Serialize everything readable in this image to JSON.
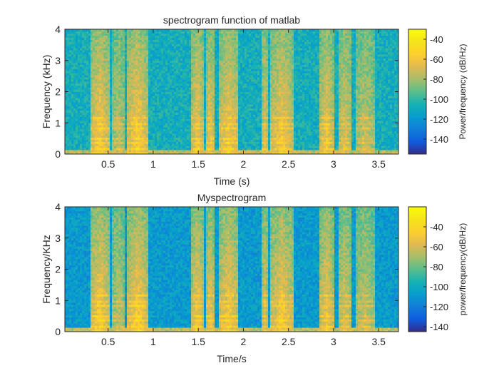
{
  "chart_data": [
    {
      "type": "heatmap",
      "title": "spectrogram function of matlab",
      "xlabel": "Time (s)",
      "ylabel": "Frequency (kHz)",
      "xlim": [
        0.02,
        3.72
      ],
      "ylim": [
        0,
        4
      ],
      "xticks": [
        0.5,
        1,
        1.5,
        2,
        2.5,
        3,
        3.5
      ],
      "xtick_labels": [
        "0.5",
        "1",
        "1.5",
        "2",
        "2.5",
        "3",
        "3.5"
      ],
      "yticks": [
        0,
        1,
        2,
        3,
        4
      ],
      "ytick_labels": [
        "0",
        "1",
        "2",
        "3",
        "4"
      ],
      "colorbar": {
        "label": "Power/frequency (dB/Hz)",
        "range": [
          -155,
          -30
        ],
        "ticks": [
          -40,
          -60,
          -80,
          -100,
          -120,
          -140
        ],
        "tick_labels": [
          "-40",
          "-60",
          "-80",
          "-100",
          "-120",
          "-140"
        ]
      },
      "colormap": "parula",
      "speech_segments": [
        {
          "t_start": 0.3,
          "t_end": 0.52,
          "level": 0.95
        },
        {
          "t_start": 0.55,
          "t_end": 0.68,
          "level": 0.55
        },
        {
          "t_start": 0.7,
          "t_end": 0.95,
          "level": 0.95
        },
        {
          "t_start": 1.43,
          "t_end": 1.55,
          "level": 0.9
        },
        {
          "t_start": 1.58,
          "t_end": 1.68,
          "level": 0.8
        },
        {
          "t_start": 1.72,
          "t_end": 1.95,
          "level": 0.9
        },
        {
          "t_start": 2.2,
          "t_end": 2.28,
          "level": 0.7
        },
        {
          "t_start": 2.3,
          "t_end": 2.55,
          "level": 0.9
        },
        {
          "t_start": 2.85,
          "t_end": 3.0,
          "level": 0.85
        },
        {
          "t_start": 3.05,
          "t_end": 3.2,
          "level": 0.7
        },
        {
          "t_start": 3.25,
          "t_end": 3.45,
          "level": 0.6
        }
      ]
    },
    {
      "type": "heatmap",
      "title": "Myspectrogram",
      "xlabel": "Time/s",
      "ylabel": "Frequency/KHz",
      "xlim": [
        0.02,
        3.72
      ],
      "ylim": [
        0,
        4
      ],
      "xticks": [
        0.5,
        1,
        1.5,
        2,
        2.5,
        3,
        3.5
      ],
      "xtick_labels": [
        "0.5",
        "1",
        "1.5",
        "2",
        "2.5",
        "3",
        "3.5"
      ],
      "yticks": [
        0,
        1,
        2,
        3,
        4
      ],
      "ytick_labels": [
        "0",
        "1",
        "2",
        "3",
        "4"
      ],
      "colorbar": {
        "label": "power/frequency(dB/Hz)",
        "range": [
          -145,
          -20
        ],
        "ticks": [
          -40,
          -60,
          -80,
          -100,
          -120,
          -140
        ],
        "tick_labels": [
          "-40",
          "-60",
          "-80",
          "-100",
          "-120",
          "-140"
        ]
      },
      "colormap": "parula",
      "speech_segments": [
        {
          "t_start": 0.3,
          "t_end": 0.52,
          "level": 0.95
        },
        {
          "t_start": 0.55,
          "t_end": 0.68,
          "level": 0.55
        },
        {
          "t_start": 0.7,
          "t_end": 0.95,
          "level": 0.95
        },
        {
          "t_start": 1.43,
          "t_end": 1.55,
          "level": 0.9
        },
        {
          "t_start": 1.58,
          "t_end": 1.68,
          "level": 0.8
        },
        {
          "t_start": 1.72,
          "t_end": 1.95,
          "level": 0.9
        },
        {
          "t_start": 2.2,
          "t_end": 2.28,
          "level": 0.7
        },
        {
          "t_start": 2.3,
          "t_end": 2.55,
          "level": 0.9
        },
        {
          "t_start": 2.85,
          "t_end": 3.0,
          "level": 0.85
        },
        {
          "t_start": 3.05,
          "t_end": 3.2,
          "level": 0.7
        },
        {
          "t_start": 3.25,
          "t_end": 3.45,
          "level": 0.6
        }
      ]
    }
  ]
}
